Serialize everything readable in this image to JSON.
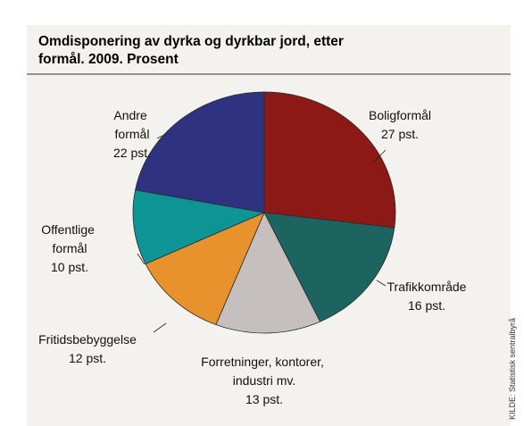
{
  "chart_data": {
    "type": "pie",
    "title": "Omdisponering av dyrka og dyrkbar jord, etter formål. 2009. Prosent",
    "categories": [
      "Boligformål",
      "Trafikkområde",
      "Forretninger, kontorer, industri mv.",
      "Fritidsbebyggelse",
      "Offentlige formål",
      "Andre formål"
    ],
    "values": [
      27,
      16,
      13,
      12,
      10,
      22
    ],
    "value_labels": [
      "27 pst.",
      "16 pst.",
      "13 pst.",
      "12 pst.",
      "10 pst.",
      "22 pst."
    ],
    "colors": [
      "#8c1915",
      "#1d6461",
      "#c5c0bd",
      "#e8922d",
      "#0d9494",
      "#2e3281"
    ],
    "source": "KILDE: Statistisk sentralbyrå"
  }
}
